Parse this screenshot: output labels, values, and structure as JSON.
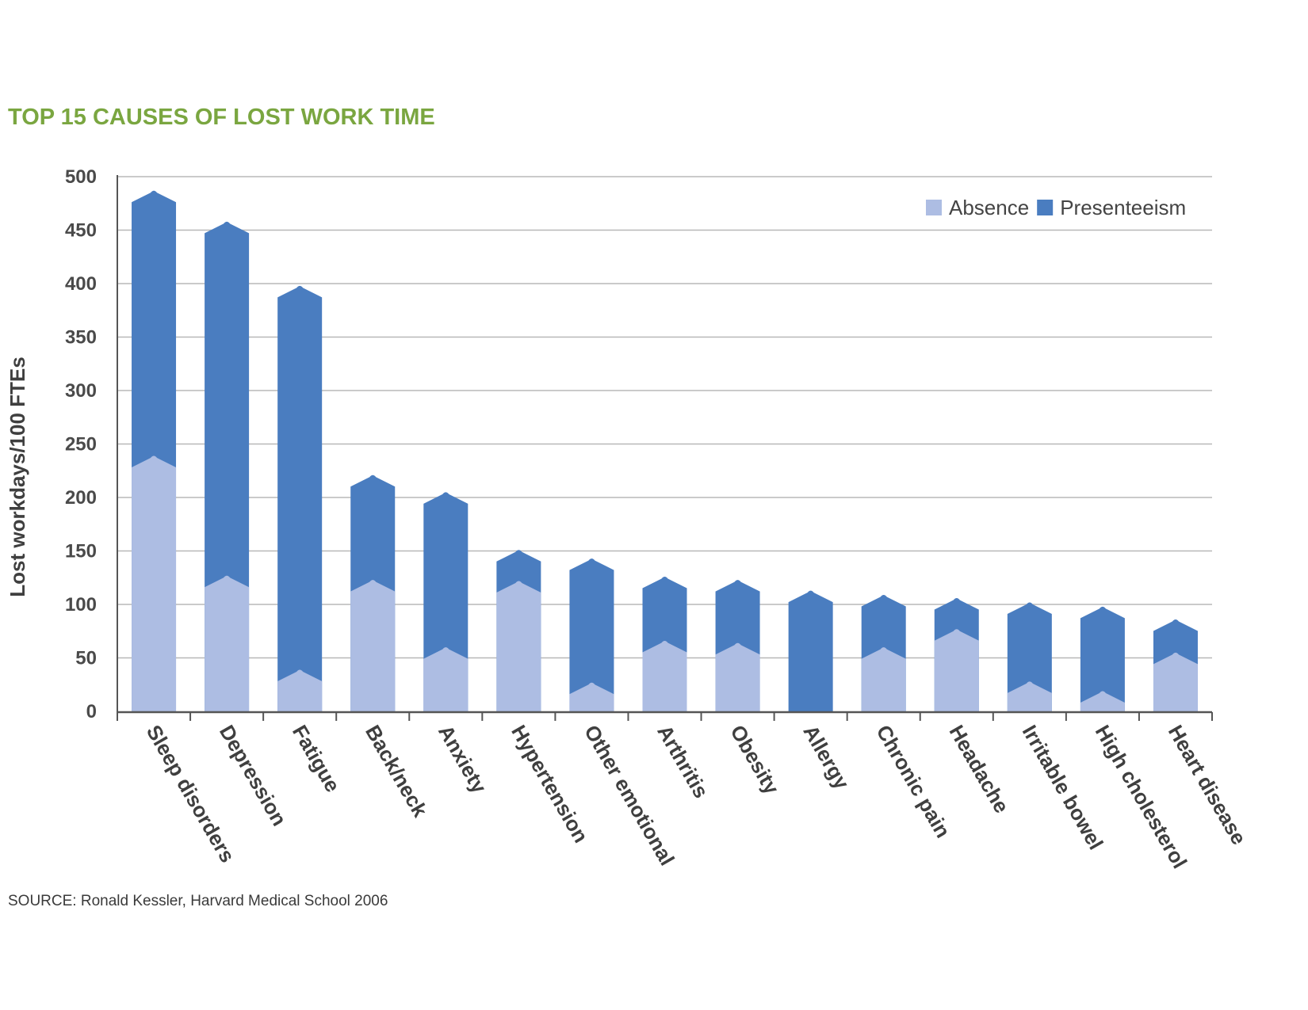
{
  "chart_data": {
    "type": "bar",
    "stacked": true,
    "title": "TOP 15 CAUSES OF LOST WORK TIME",
    "ylabel": "Lost workdays/100 FTEs",
    "xlabel": "",
    "ylim": [
      0,
      500
    ],
    "yticks": [
      0,
      50,
      100,
      150,
      200,
      250,
      300,
      350,
      400,
      450,
      500
    ],
    "grid": true,
    "legend_position": "top-right",
    "categories": [
      "Sleep disorders",
      "Depression",
      "Fatigue",
      "Back/neck",
      "Anxiety",
      "Hypertension",
      "Other emotional",
      "Arthritis",
      "Obesity",
      "Allergy",
      "Chronic pain",
      "Headache",
      "Irritable bowel",
      "High cholesterol",
      "Heart disease"
    ],
    "series": [
      {
        "name": "Absence",
        "color": "#adbde3",
        "values": [
          240,
          128,
          40,
          124,
          61,
          123,
          28,
          67,
          65,
          0,
          61,
          78,
          29,
          20,
          56
        ]
      },
      {
        "name": "Presenteeism",
        "color": "#4a7dc0",
        "values": [
          248,
          331,
          359,
          98,
          145,
          29,
          116,
          60,
          59,
          114,
          49,
          29,
          74,
          79,
          31
        ]
      }
    ],
    "source": "SOURCE: Ronald Kessler, Harvard Medical School 2006"
  }
}
